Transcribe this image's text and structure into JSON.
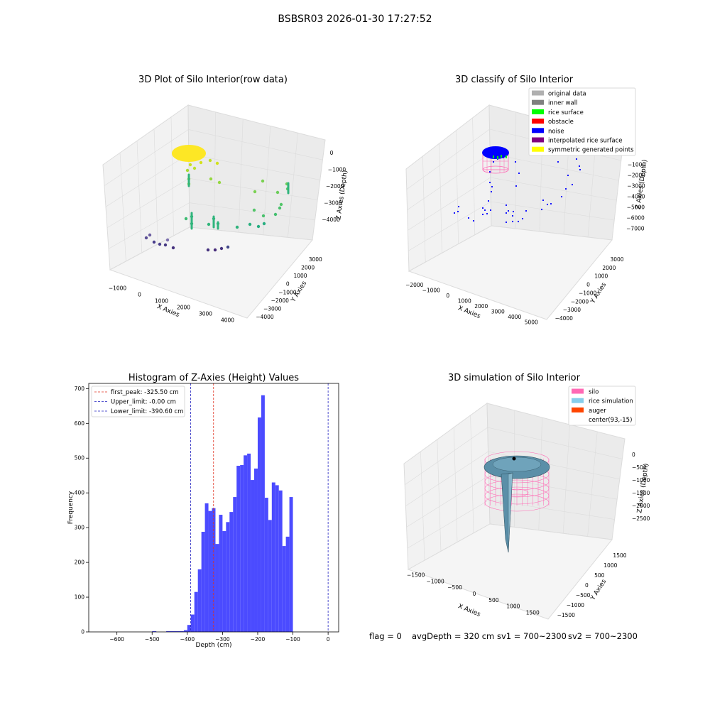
{
  "figure": {
    "suptitle": "BSBSR03 2026-01-30 17:27:52",
    "footer": {
      "flag": "flag = 0",
      "avg_depth": "avgDepth = 320 cm",
      "sv1": "sv1 = 700~2300",
      "sv2": "sv2 = 700~2300"
    }
  },
  "chart_data": [
    {
      "type": "scatter",
      "title": "3D Plot of Silo Interior(row data)",
      "xlabel": "X Axies",
      "ylabel": "Y Axies",
      "zlabel": "Z Axies (Depth)",
      "x_ticks": [
        "−1000",
        "0",
        "1000",
        "2000",
        "3000",
        "4000"
      ],
      "y_ticks": [
        "3000",
        "2000",
        "1000",
        "0",
        "−1000",
        "−2000",
        "−3000",
        "−4000"
      ],
      "z_ticks": [
        "0",
        "−1000",
        "−2000",
        "−3000",
        "−4000"
      ],
      "colormap": "viridis",
      "colors": {
        "high": "#fde725",
        "mid": "#35b779",
        "low": "#443983"
      }
    },
    {
      "type": "scatter",
      "title": "3D classify of Silo Interior",
      "xlabel": "X Axies",
      "ylabel": "Y Axies",
      "zlabel": "Z Axies (Depth)",
      "x_ticks": [
        "−2000",
        "−1000",
        "0",
        "1000",
        "2000",
        "3000",
        "4000",
        "5000"
      ],
      "y_ticks": [
        "3000",
        "2000",
        "1000",
        "0",
        "−1000",
        "−2000",
        "−3000",
        "−4000"
      ],
      "z_ticks": [
        "−1000",
        "−2000",
        "−3000",
        "−4000",
        "−5000",
        "−6000",
        "−7000"
      ],
      "legend": [
        {
          "label": "original data",
          "color": "#b0b0b0"
        },
        {
          "label": "inner wall",
          "color": "#808080"
        },
        {
          "label": "rice surface",
          "color": "#00ff00"
        },
        {
          "label": "obstacle",
          "color": "#ff0000"
        },
        {
          "label": "noise",
          "color": "#0000ff"
        },
        {
          "label": "interpolated rice surface",
          "color": "#800080"
        },
        {
          "label": "symmetric generated points",
          "color": "#ffff00"
        }
      ]
    },
    {
      "type": "bar",
      "title": "Histogram of Z-Axies (Height) Values",
      "xlabel": "Depth (cm)",
      "ylabel": "Frequency",
      "xlim": [
        -680,
        30
      ],
      "ylim": [
        0,
        715
      ],
      "x_ticks": [
        "−600",
        "−500",
        "−400",
        "−300",
        "−200",
        "−100",
        "0"
      ],
      "y_ticks": [
        "0",
        "100",
        "200",
        "300",
        "400",
        "500",
        "600",
        "700"
      ],
      "bar_color": "#4b4bff",
      "bins": [
        {
          "x0": -500,
          "x1": -488,
          "v": 2
        },
        {
          "x0": -460,
          "x1": -410,
          "v": 2
        },
        {
          "x0": -410,
          "x1": -400,
          "v": 5
        },
        {
          "x0": -400,
          "x1": -390,
          "v": 20
        },
        {
          "x0": -390,
          "x1": -380,
          "v": 50
        },
        {
          "x0": -380,
          "x1": -370,
          "v": 115
        },
        {
          "x0": -370,
          "x1": -360,
          "v": 180
        },
        {
          "x0": -360,
          "x1": -350,
          "v": 288
        },
        {
          "x0": -350,
          "x1": -340,
          "v": 370
        },
        {
          "x0": -340,
          "x1": -330,
          "v": 348
        },
        {
          "x0": -330,
          "x1": -320,
          "v": 356
        },
        {
          "x0": -320,
          "x1": -310,
          "v": 253
        },
        {
          "x0": -310,
          "x1": -300,
          "v": 337
        },
        {
          "x0": -300,
          "x1": -290,
          "v": 290
        },
        {
          "x0": -290,
          "x1": -280,
          "v": 316
        },
        {
          "x0": -280,
          "x1": -270,
          "v": 345
        },
        {
          "x0": -270,
          "x1": -260,
          "v": 388
        },
        {
          "x0": -260,
          "x1": -250,
          "v": 478
        },
        {
          "x0": -250,
          "x1": -240,
          "v": 480
        },
        {
          "x0": -240,
          "x1": -230,
          "v": 508
        },
        {
          "x0": -230,
          "x1": -220,
          "v": 513
        },
        {
          "x0": -220,
          "x1": -210,
          "v": 437
        },
        {
          "x0": -210,
          "x1": -200,
          "v": 470
        },
        {
          "x0": -200,
          "x1": -190,
          "v": 617
        },
        {
          "x0": -190,
          "x1": -180,
          "v": 681
        },
        {
          "x0": -180,
          "x1": -170,
          "v": 386
        },
        {
          "x0": -170,
          "x1": -160,
          "v": 322
        },
        {
          "x0": -160,
          "x1": -150,
          "v": 430
        },
        {
          "x0": -150,
          "x1": -140,
          "v": 422
        },
        {
          "x0": -140,
          "x1": -130,
          "v": 407
        },
        {
          "x0": -130,
          "x1": -120,
          "v": 247
        },
        {
          "x0": -120,
          "x1": -110,
          "v": 274
        },
        {
          "x0": -110,
          "x1": -100,
          "v": 388
        }
      ],
      "lines": [
        {
          "label": "first_peak: -325.50 cm",
          "value": -325.5,
          "color": "#e0301e"
        },
        {
          "label": "Upper_limit: -0.00 cm",
          "value": 0,
          "color": "#2020c0"
        },
        {
          "label": "Lower_limit: -390.60 cm",
          "value": -390.6,
          "color": "#2020c0"
        }
      ]
    },
    {
      "type": "surface",
      "title": "3D simulation of Silo Interior",
      "xlabel": "X Axies",
      "ylabel": "Y Axies",
      "zlabel": "Z Axies (Depth)",
      "x_ticks": [
        "−1500",
        "−1000",
        "−500",
        "0",
        "500",
        "1000",
        "1500"
      ],
      "y_ticks": [
        "1500",
        "1000",
        "500",
        "0",
        "−500",
        "−1000",
        "−1500"
      ],
      "z_ticks": [
        "0",
        "−500",
        "−1000",
        "−1500",
        "−2000",
        "−2500"
      ],
      "legend": [
        {
          "label": "silo",
          "color": "#ff69b4"
        },
        {
          "label": "rice simulation",
          "color": "#87ceeb"
        },
        {
          "label": "auger",
          "color": "#ff4500"
        },
        {
          "label": "center(93,-15)",
          "color": ""
        }
      ]
    }
  ]
}
